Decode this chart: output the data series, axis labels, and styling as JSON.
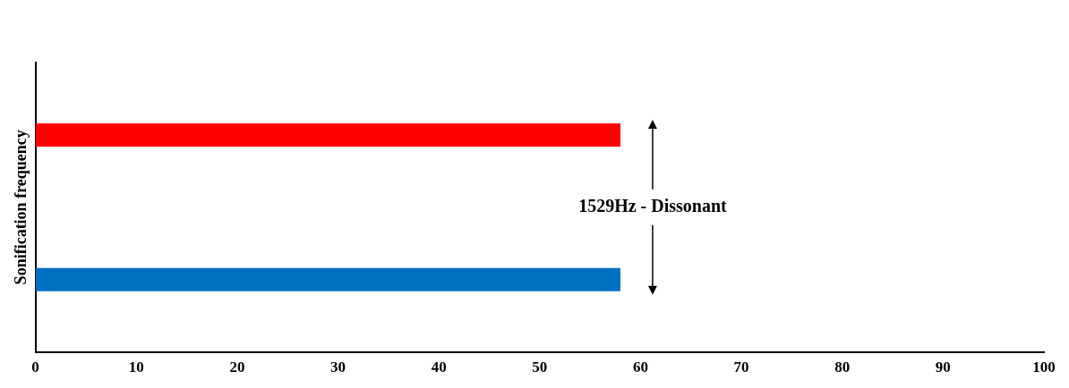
{
  "chart_data": {
    "type": "bar",
    "orientation": "horizontal",
    "ylabel": "Sonification frequency",
    "categories": [
      null,
      null
    ],
    "values": [
      58,
      58
    ],
    "colors": [
      "#ff0000",
      "#0070c0"
    ],
    "xlim": [
      0,
      100
    ],
    "xticks": [
      0,
      10,
      20,
      30,
      40,
      50,
      60,
      70,
      80,
      90,
      100
    ],
    "grid": false,
    "legend": false,
    "tick_labels": "x",
    "annotations": [
      "1529Hz - Dissonant"
    ]
  }
}
